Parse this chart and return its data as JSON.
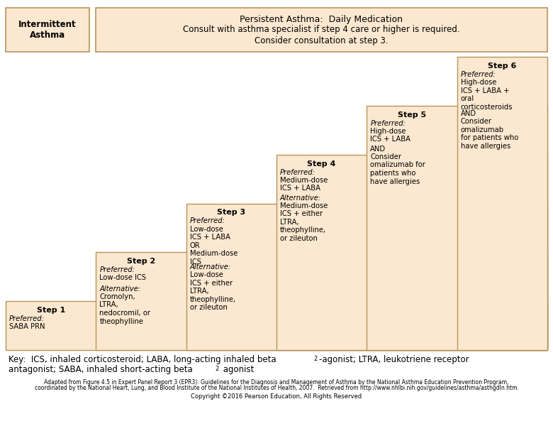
{
  "bg_color": "#ffffff",
  "box_fill": "#fce8d0",
  "box_edge": "#b8955a",
  "title_line1": "Persistent Asthma:  Daily Medication",
  "title_line2": "Consult with asthma specialist if step 4 care or higher is required.",
  "title_line3": "Consider consultation at step 3.",
  "intermittent_label": "Intermittent\nAsthma",
  "steps": [
    {
      "label": "Step 1",
      "preferred_title": "Preferred:",
      "preferred": "SABA PRN",
      "alternative_title": "",
      "alternative": ""
    },
    {
      "label": "Step 2",
      "preferred_title": "Preferred:",
      "preferred": "Low-dose ICS",
      "alternative_title": "Alternative:",
      "alternative": "Cromolyn,\nLTRA,\nnedocromil, or\ntheophylline"
    },
    {
      "label": "Step 3",
      "preferred_title": "Preferred:",
      "preferred": "Low-dose\nICS + LABA\nOR\nMedium-dose\nICS",
      "alternative_title": "Alternative:",
      "alternative": "Low-dose\nICS + either\nLTRA,\ntheophylline,\nor zileuton"
    },
    {
      "label": "Step 4",
      "preferred_title": "Preferred:",
      "preferred": "Medium-dose\nICS + LABA",
      "alternative_title": "Alternative:",
      "alternative": "Medium-dose\nICS + either\nLTRA,\ntheophylline,\nor zileuton"
    },
    {
      "label": "Step 5",
      "preferred_title": "Preferred:",
      "preferred": "High-dose\nICS + LABA",
      "alternative_title": "AND",
      "alternative": "Consider\nomalizumab for\npatients who\nhave allergies"
    },
    {
      "label": "Step 6",
      "preferred_title": "Preferred:",
      "preferred": "High-dose\nICS + LABA +\noral\ncorticosteroids",
      "alternative_title": "AND",
      "alternative": "Consider\nomalizumab\nfor patients who\nhave allergies"
    }
  ],
  "adapted_text1": "Adapted from Figure 4.5 in ",
  "adapted_text2": "Expert Panel Report 3 (EPR3): Guidelines for the Diagnosis and Management of Asthma",
  "adapted_text3": " by the National Asthma Education Prevention Program,",
  "adapted_line2": "coordinated by the National Heart, Lung, and Blood Institute of the National Institutes of Health, 2007.  Retrieved from http://www.nhlbi.nih.gov/guidelines/asthma/asthgdln.htm.",
  "copyright_text": "Copyright ©2016 Pearson Education, All Rights Reserved"
}
